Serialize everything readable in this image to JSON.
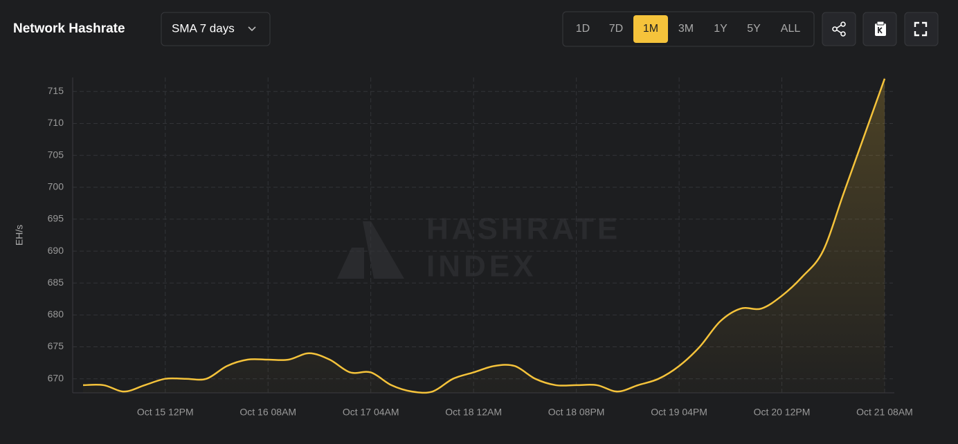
{
  "header": {
    "title": "Network Hashrate",
    "smoothing": "SMA 7 days",
    "ranges": [
      "1D",
      "7D",
      "1M",
      "3M",
      "1Y",
      "5Y",
      "ALL"
    ],
    "active_range": "1M"
  },
  "chart_data": {
    "type": "line",
    "y_label": "EH/s",
    "watermark": [
      "HASHRATE",
      "INDEX"
    ],
    "categories": [
      null,
      null,
      null,
      null,
      "Oct 15 12PM",
      null,
      null,
      null,
      null,
      "Oct 16 08AM",
      null,
      null,
      null,
      null,
      "Oct 17 04AM",
      null,
      null,
      null,
      null,
      "Oct 18 12AM",
      null,
      null,
      null,
      null,
      "Oct 18 08PM",
      null,
      null,
      null,
      null,
      "Oct 19 04PM",
      null,
      null,
      null,
      null,
      "Oct 20 12PM",
      null,
      null,
      null,
      null,
      "Oct 21 08AM"
    ],
    "series": [
      {
        "name": "Network Hashrate",
        "color": "#f5c33b",
        "values": [
          669,
          669,
          668,
          669,
          670,
          670,
          670,
          672,
          673,
          673,
          673,
          674,
          673,
          671,
          671,
          669,
          668,
          668,
          670,
          671,
          672,
          672,
          670,
          669,
          669,
          669,
          668,
          669,
          670,
          672,
          675,
          679,
          681,
          681,
          683,
          686,
          690,
          699,
          708,
          717
        ]
      }
    ],
    "ylim": [
      667.8,
      717.2
    ],
    "yticks": [
      670,
      675,
      680,
      685,
      690,
      695,
      700,
      705,
      710,
      715
    ],
    "grid": true
  }
}
